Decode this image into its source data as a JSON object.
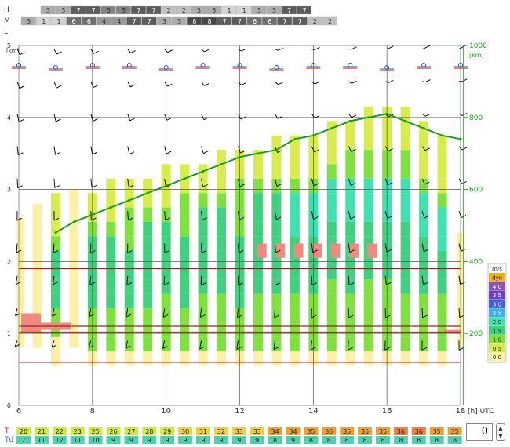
{
  "cloud_rows": {
    "high": {
      "label": "H",
      "values": [
        3,
        3,
        7,
        7,
        5,
        5,
        7,
        7,
        2,
        2,
        3,
        3,
        1,
        1,
        3,
        3,
        7,
        7
      ]
    },
    "mid": {
      "label": "M",
      "values": [
        3,
        1,
        1,
        6,
        6,
        4,
        4,
        7,
        7,
        3,
        3,
        8,
        8,
        7,
        7,
        6,
        6,
        7,
        7,
        2,
        2
      ]
    },
    "low": {
      "label": "L",
      "values": []
    }
  },
  "chart_data": {
    "type": "heatmap",
    "x_axis": {
      "ticks": [
        "6",
        "8",
        "10",
        "12",
        "14",
        "16",
        "18"
      ],
      "range": [
        6,
        18
      ],
      "unit": "[h] UTC"
    },
    "y_left": {
      "ticks": [
        "0",
        "1",
        "2",
        "3",
        "4",
        "5"
      ],
      "range": [
        0,
        5
      ],
      "unit": "[km]"
    },
    "y_right": {
      "ticks": [
        "200",
        "400",
        "600",
        "800",
        "1000"
      ],
      "range": [
        0,
        1000
      ],
      "unit": "[km]"
    },
    "legend": {
      "title": "m/s",
      "items": [
        {
          "label": "dyn",
          "color": "#f0b020"
        },
        {
          "label": "4.0",
          "color": "#9050b0"
        },
        {
          "label": "3.5",
          "color": "#6a40c8"
        },
        {
          "label": "3.0",
          "color": "#4060d8"
        },
        {
          "label": "2.5",
          "color": "#40b0e8"
        },
        {
          "label": "2.0",
          "color": "#40e0b0"
        },
        {
          "label": "1.5",
          "color": "#40d080"
        },
        {
          "label": "1.0",
          "color": "#80e040"
        },
        {
          "label": "0.5",
          "color": "#d8ec50"
        },
        {
          "label": "0.0",
          "color": "#fcf0a8"
        }
      ]
    },
    "columns": [
      {
        "t": 6.05,
        "top": 2.45,
        "core": []
      },
      {
        "t": 6.5,
        "top": 2.7,
        "core": []
      },
      {
        "t": 7.0,
        "top": 2.8,
        "core": [
          0.8,
          2.5
        ]
      },
      {
        "t": 7.5,
        "top": 2.9,
        "core": []
      },
      {
        "t": 8.0,
        "top": 2.95,
        "core": [
          0.6,
          2.7
        ]
      },
      {
        "t": 8.5,
        "top": 3.0,
        "core": [
          0.6,
          2.8
        ]
      },
      {
        "t": 9.0,
        "top": 3.05,
        "core": [
          0.6,
          2.9
        ]
      },
      {
        "t": 9.5,
        "top": 3.1,
        "core": [
          0.6,
          3.0
        ]
      },
      {
        "t": 10.0,
        "top": 3.2,
        "core": [
          0.6,
          3.1
        ]
      },
      {
        "t": 10.5,
        "top": 3.3,
        "core": [
          0.6,
          3.2
        ]
      },
      {
        "t": 11.0,
        "top": 3.35,
        "core": [
          0.6,
          3.3
        ]
      },
      {
        "t": 11.5,
        "top": 3.4,
        "core": [
          0.6,
          3.3
        ]
      },
      {
        "t": 12.0,
        "top": 3.5,
        "core": [
          0.6,
          3.4
        ]
      },
      {
        "t": 12.5,
        "top": 3.55,
        "core": [
          0.6,
          3.5
        ]
      },
      {
        "t": 13.0,
        "top": 3.6,
        "core": [
          0.6,
          3.5
        ]
      },
      {
        "t": 13.5,
        "top": 3.7,
        "core": [
          0.6,
          3.6
        ]
      },
      {
        "t": 14.0,
        "top": 3.75,
        "core": [
          0.6,
          3.6
        ]
      },
      {
        "t": 14.5,
        "top": 3.85,
        "core": [
          0.6,
          3.8
        ]
      },
      {
        "t": 15.0,
        "top": 3.95,
        "core": [
          0.6,
          3.9
        ]
      },
      {
        "t": 15.5,
        "top": 4.0,
        "core": [
          0.6,
          3.9
        ]
      },
      {
        "t": 16.0,
        "top": 4.05,
        "core": [
          0.6,
          4.0
        ]
      },
      {
        "t": 16.5,
        "top": 4.0,
        "core": [
          0.6,
          3.9
        ]
      },
      {
        "t": 17.0,
        "top": 3.9,
        "core": [
          0.6,
          3.6
        ]
      },
      {
        "t": 17.5,
        "top": 3.7,
        "core": [
          0.6,
          3.3
        ]
      },
      {
        "t": 18.0,
        "top": 2.35,
        "core": []
      }
    ],
    "green_line": {
      "x": [
        7.0,
        7.5,
        8.0,
        8.5,
        9.0,
        9.5,
        10.0,
        10.5,
        11.0,
        11.5,
        12.0,
        12.5,
        13.0,
        13.5,
        14.0,
        14.5,
        15.0,
        15.5,
        16.0,
        16.5,
        17.0,
        17.5,
        18.0
      ],
      "y": [
        2.4,
        2.55,
        2.65,
        2.75,
        2.85,
        2.95,
        3.05,
        3.15,
        3.25,
        3.35,
        3.45,
        3.5,
        3.55,
        3.7,
        3.75,
        3.85,
        3.95,
        4.0,
        4.05,
        3.95,
        3.85,
        3.75,
        3.7
      ]
    },
    "temperature": {
      "label": "T",
      "values": [
        20,
        21,
        22,
        23,
        25,
        26,
        27,
        28,
        29,
        30,
        31,
        32,
        33,
        33,
        34,
        34,
        35,
        35,
        35,
        35,
        35,
        36,
        36,
        35,
        35
      ]
    },
    "dewpoint": {
      "label": "Td",
      "values": [
        7,
        11,
        12,
        11,
        10,
        9,
        9,
        9,
        9,
        9,
        9,
        9,
        9,
        9,
        8,
        9,
        8,
        8,
        8,
        8,
        8,
        8,
        8,
        8,
        8
      ]
    }
  },
  "stepper": {
    "value": "0",
    "up": "▲",
    "down": "▼"
  }
}
